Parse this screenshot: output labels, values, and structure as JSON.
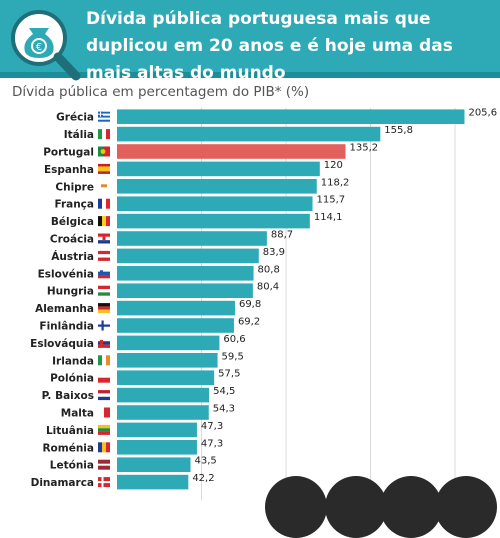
{
  "header": {
    "title": "Dívida pública portuguesa mais que duplicou em 20 anos e é hoje uma das mais altas do mundo",
    "icon": "money-bag-magnifier-icon",
    "background_color": "#2eaab6"
  },
  "chart_data": {
    "type": "bar",
    "orientation": "horizontal",
    "title": "Dívida pública em percentagem do PIB* (%)",
    "categories": [
      "Grécia",
      "Itália",
      "Portugal",
      "Espanha",
      "Chipre",
      "França",
      "Bélgica",
      "Croácia",
      "Áustria",
      "Eslovénia",
      "Hungria",
      "Alemanha",
      "Finlândia",
      "Eslováquia",
      "Irlanda",
      "Polónia",
      "P. Baixos",
      "Malta",
      "Lituânia",
      "Roménia",
      "Letónia",
      "Dinamarca"
    ],
    "values": [
      205.6,
      155.8,
      135.2,
      120,
      118.2,
      115.7,
      114.1,
      88.7,
      83.9,
      80.8,
      80.4,
      69.8,
      69.2,
      60.6,
      59.5,
      57.5,
      54.5,
      54.3,
      47.3,
      47.3,
      43.5,
      42.2
    ],
    "value_labels": [
      "205,6",
      "155,8",
      "135,2",
      "120",
      "118,2",
      "115,7",
      "114,1",
      "88,7",
      "83,9",
      "80,8",
      "80,4",
      "69,8",
      "69,2",
      "60,6",
      "59,5",
      "57,5",
      "54,5",
      "54,3",
      "47,3",
      "47,3",
      "43,5",
      "42,2"
    ],
    "highlight": "Portugal",
    "bar_color": "#2eaab6",
    "highlight_color": "#e2605b",
    "grid": true,
    "xlim": [
      0,
      210
    ],
    "flags": [
      "greece-flag-icon",
      "italy-flag-icon",
      "portugal-flag-icon",
      "spain-flag-icon",
      "cyprus-flag-icon",
      "france-flag-icon",
      "belgium-flag-icon",
      "croatia-flag-icon",
      "austria-flag-icon",
      "slovenia-flag-icon",
      "hungary-flag-icon",
      "germany-flag-icon",
      "finland-flag-icon",
      "slovakia-flag-icon",
      "ireland-flag-icon",
      "poland-flag-icon",
      "netherlands-flag-icon",
      "malta-flag-icon",
      "lithuania-flag-icon",
      "romania-flag-icon",
      "latvia-flag-icon",
      "denmark-flag-icon"
    ]
  }
}
